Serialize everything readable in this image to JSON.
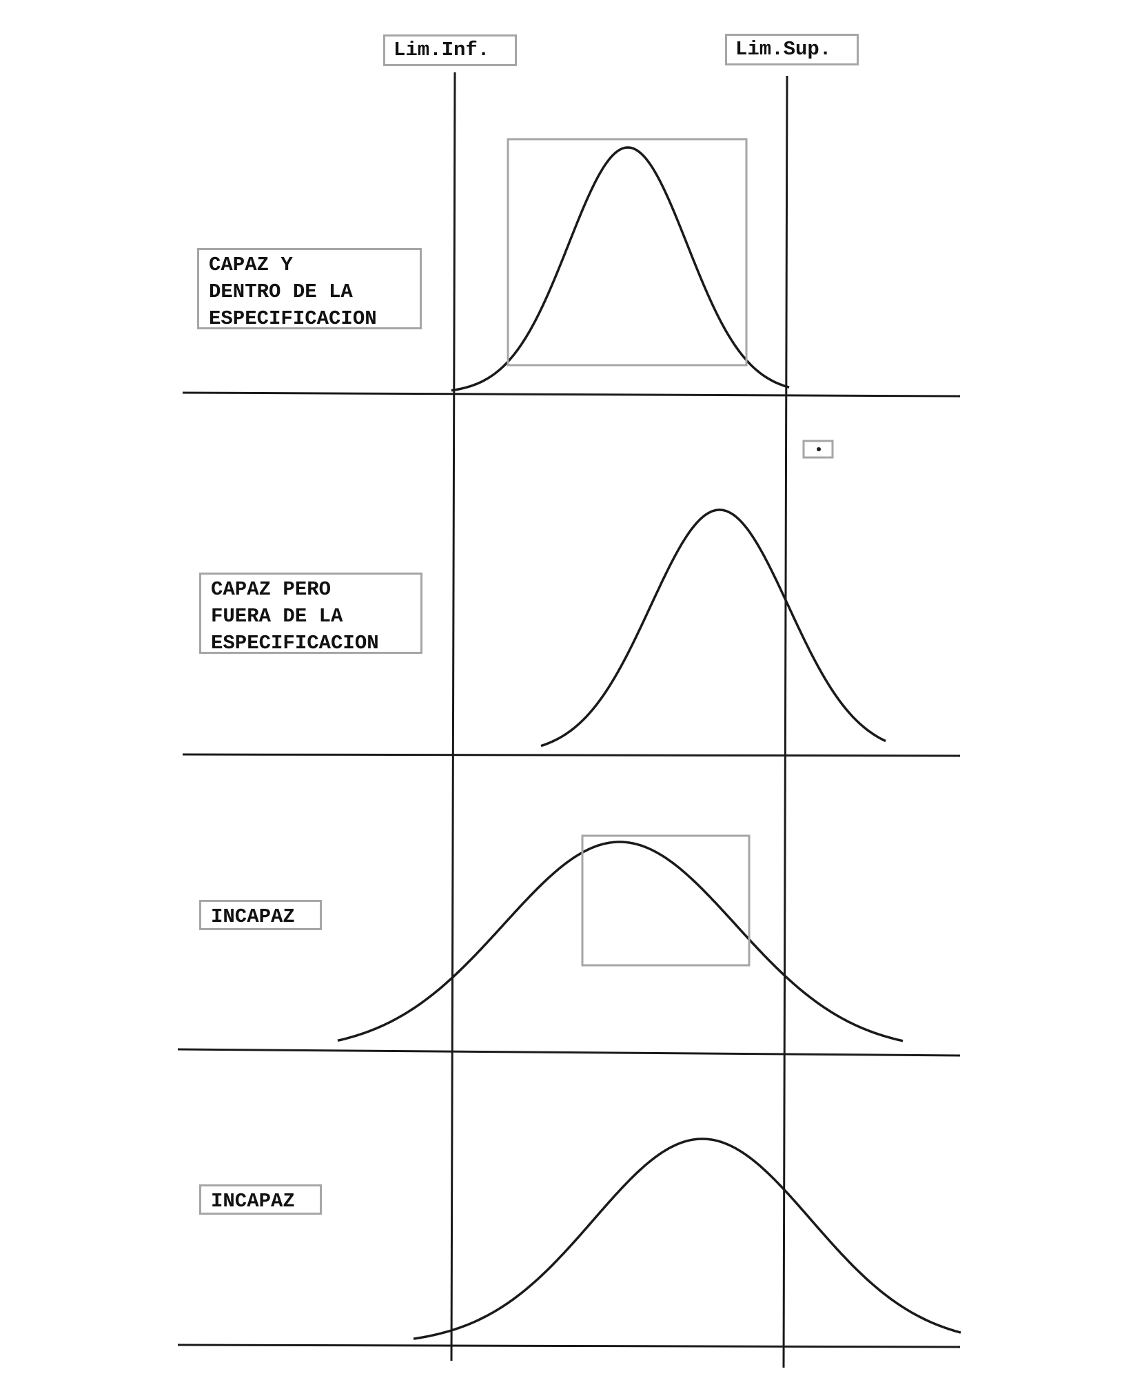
{
  "limits": {
    "lower_label": "Lim.Inf.",
    "upper_label": "Lim.Sup."
  },
  "cases": [
    {
      "label": "CAPAZ Y\nDENTRO DE LA\nESPECIFICACION"
    },
    {
      "label": "CAPAZ PERO\nFUERA DE LA\nESPECIFICACION"
    },
    {
      "label": "INCAPAZ"
    },
    {
      "label": "INCAPAZ"
    }
  ],
  "colors": {
    "ink": "#1a1a1a",
    "box_border": "#a6a6a6"
  }
}
